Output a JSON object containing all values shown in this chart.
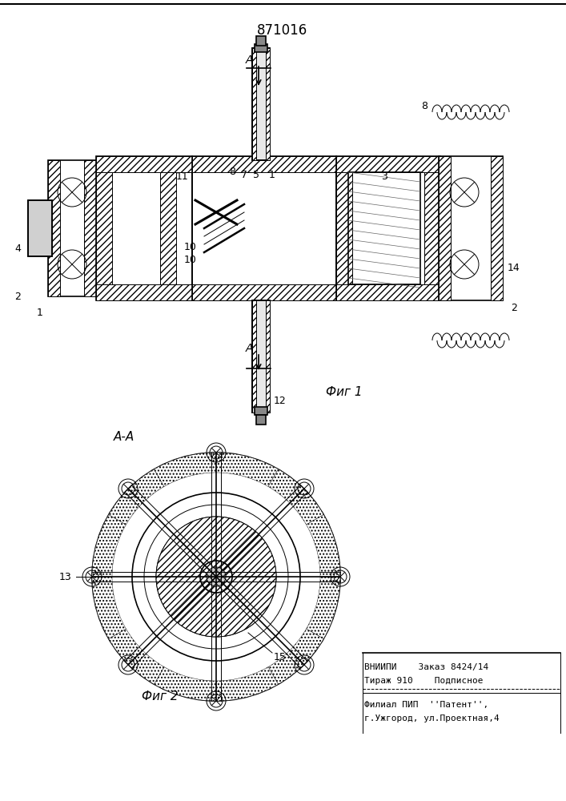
{
  "patent_number": "871016",
  "fig1_caption": "Фиг 1",
  "fig2_caption": "Фиг 2",
  "section_label": "А-А",
  "arrow_label_top": "А",
  "arrow_label_bottom": "А",
  "info_box": {
    "line1": "ВНИИПИ    Заказ 8424/14",
    "line2": "Тираж 910    Подписное",
    "separator": "--------------------------------",
    "line3": "Филиал ПИП  ''Патент'',",
    "line4": "г.Ужгород, ул.Проектная,4"
  },
  "bg_color": "#ffffff",
  "line_color": "#000000",
  "hatch_color": "#000000",
  "fig_width": 7.07,
  "fig_height": 10.0,
  "dpi": 100
}
